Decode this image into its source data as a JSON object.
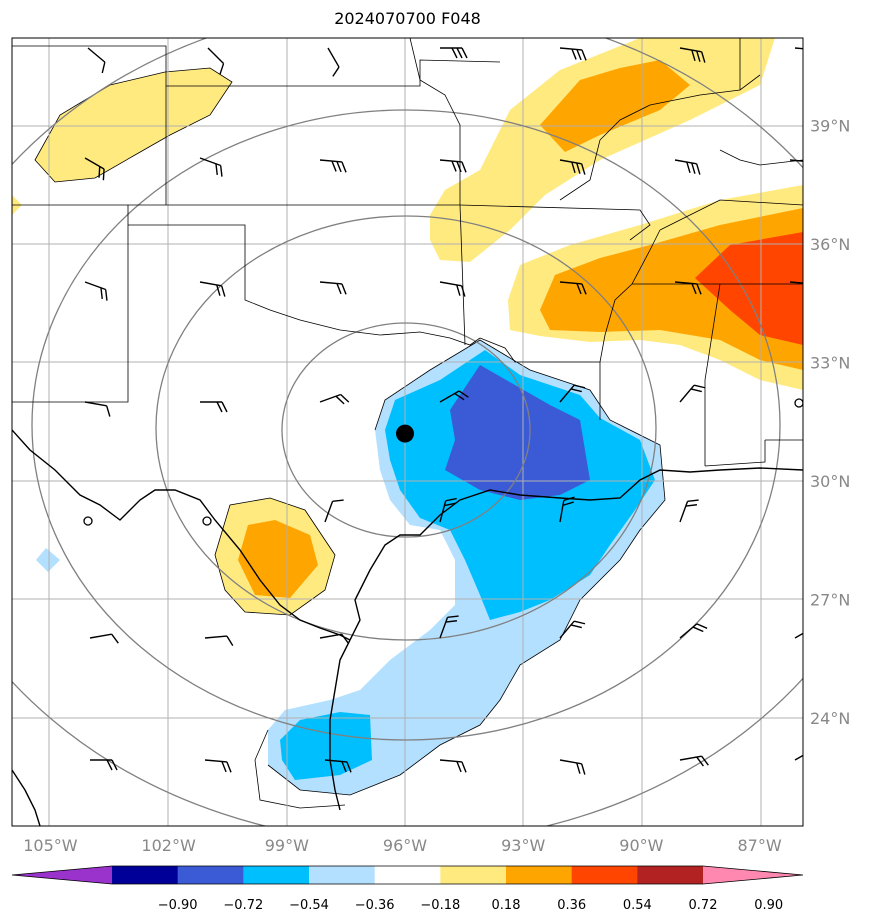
{
  "title": "2024070700 F048",
  "x_axis_labels": [
    {
      "label": "105°W",
      "lon": -105
    },
    {
      "label": "102°W",
      "lon": -102
    },
    {
      "label": "99°W",
      "lon": -99
    },
    {
      "label": "96°W",
      "lon": -96
    },
    {
      "label": "93°W",
      "lon": -93
    },
    {
      "label": "90°W",
      "lon": -90
    },
    {
      "label": "87°W",
      "lon": -87
    }
  ],
  "y_axis_labels": [
    {
      "label": "39°N",
      "lat": 39
    },
    {
      "label": "36°N",
      "lat": 36
    },
    {
      "label": "33°N",
      "lat": 33
    },
    {
      "label": "30°N",
      "lat": 30
    },
    {
      "label": "27°N",
      "lat": 27
    },
    {
      "label": "24°N",
      "lat": 24
    }
  ],
  "colorbar": {
    "tick_labels": [
      "−0.90",
      "−0.72",
      "−0.54",
      "−0.36",
      "−0.18",
      "0.18",
      "0.36",
      "0.54",
      "0.72",
      "0.90"
    ],
    "colors": [
      "#9933cc",
      "#000099",
      "#3b5bd6",
      "#00bfff",
      "#b3e0ff",
      "#ffffff",
      "#ffea80",
      "#ffa500",
      "#ff4500",
      "#b22222",
      "#ff88b0"
    ]
  },
  "storm_center": {
    "lon": -96.0,
    "lat": 31.2
  },
  "colors": {
    "grid": "#b0b0b0",
    "range_rings": "#808080",
    "coast": "#000000"
  }
}
